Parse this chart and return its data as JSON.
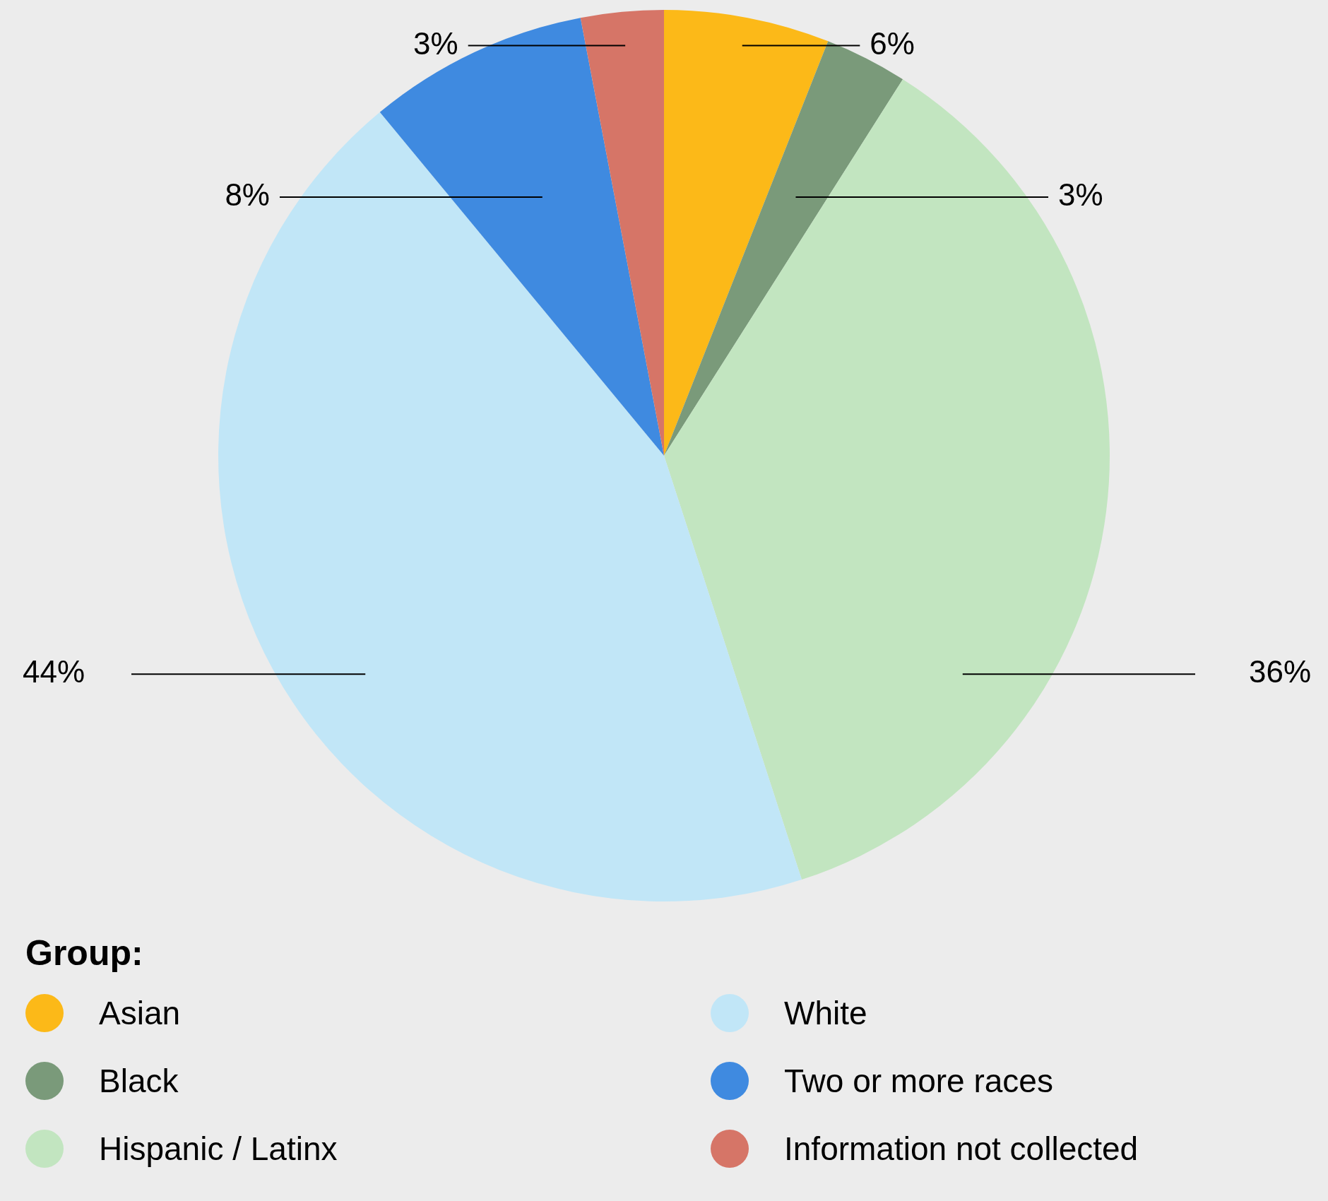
{
  "chart_data": {
    "type": "pie",
    "legend_title": "Group:",
    "legend": "bottom",
    "value_labels": [
      "6%",
      "3%",
      "36%",
      "44%",
      "8%",
      "3%"
    ],
    "categories": [
      "Asian",
      "Black",
      "Hispanic / Latinx",
      "White",
      "Two or more races",
      "Information not collected"
    ],
    "values": [
      6,
      3,
      36,
      44,
      8,
      3
    ],
    "colors": [
      "#fcb918",
      "#7a9a7a",
      "#c2e5c0",
      "#c1e6f7",
      "#3f8ae0",
      "#d67567"
    ]
  }
}
